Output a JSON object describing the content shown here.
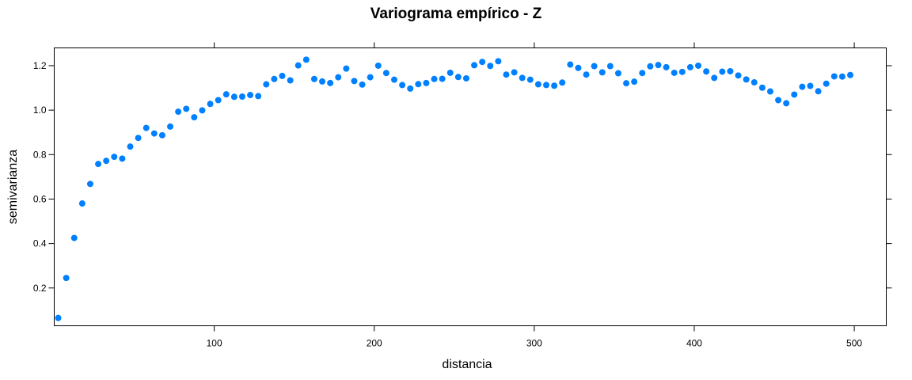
{
  "chart_data": {
    "type": "scatter",
    "title": "Variograma empírico - Z",
    "xlabel": "distancia",
    "ylabel": "semivarianza",
    "xlim": [
      0,
      520
    ],
    "ylim": [
      0.03,
      1.28
    ],
    "xticks": [
      100,
      200,
      300,
      400,
      500
    ],
    "yticks": [
      0.2,
      0.4,
      0.6,
      0.8,
      1.0,
      1.2
    ],
    "xtick_labels": [
      "100",
      "200",
      "300",
      "400",
      "500"
    ],
    "ytick_labels": [
      "0.2",
      "0.4",
      "0.6",
      "0.8",
      "1.0",
      "1.2"
    ],
    "grid": false,
    "marker_color": "#0080ff",
    "x": [
      2.5,
      7.5,
      12.5,
      17.5,
      22.5,
      27.5,
      32.5,
      37.5,
      42.5,
      47.5,
      52.5,
      57.5,
      62.5,
      67.5,
      72.5,
      77.5,
      82.5,
      87.5,
      92.5,
      97.5,
      102.5,
      107.5,
      112.5,
      117.5,
      122.5,
      127.5,
      132.5,
      137.5,
      142.5,
      147.5,
      152.5,
      157.5,
      162.5,
      167.5,
      172.5,
      177.5,
      182.5,
      187.5,
      192.5,
      197.5,
      202.5,
      207.5,
      212.5,
      217.5,
      222.5,
      227.5,
      232.5,
      237.5,
      242.5,
      247.5,
      252.5,
      257.5,
      262.5,
      267.5,
      272.5,
      277.5,
      282.5,
      287.5,
      292.5,
      297.5,
      302.5,
      307.5,
      312.5,
      317.5,
      322.5,
      327.5,
      332.5,
      337.5,
      342.5,
      347.5,
      352.5,
      357.5,
      362.5,
      367.5,
      372.5,
      377.5,
      382.5,
      387.5,
      392.5,
      397.5,
      402.5,
      407.5,
      412.5,
      417.5,
      422.5,
      427.5,
      432.5,
      437.5,
      442.5,
      447.5,
      452.5,
      457.5,
      462.5,
      467.5,
      472.5,
      477.5,
      482.5,
      487.5,
      492.5,
      497.5
    ],
    "y": [
      0.065,
      0.245,
      0.425,
      0.58,
      0.668,
      0.758,
      0.772,
      0.79,
      0.782,
      0.836,
      0.875,
      0.92,
      0.895,
      0.887,
      0.926,
      0.993,
      1.006,
      0.968,
      0.999,
      1.028,
      1.045,
      1.071,
      1.06,
      1.061,
      1.068,
      1.063,
      1.116,
      1.14,
      1.154,
      1.134,
      1.201,
      1.227,
      1.14,
      1.129,
      1.122,
      1.148,
      1.187,
      1.131,
      1.115,
      1.148,
      1.2,
      1.167,
      1.137,
      1.113,
      1.097,
      1.117,
      1.122,
      1.14,
      1.141,
      1.168,
      1.149,
      1.143,
      1.202,
      1.217,
      1.199,
      1.22,
      1.16,
      1.17,
      1.145,
      1.137,
      1.116,
      1.113,
      1.11,
      1.124,
      1.205,
      1.19,
      1.16,
      1.198,
      1.17,
      1.198,
      1.166,
      1.121,
      1.128,
      1.167,
      1.197,
      1.203,
      1.193,
      1.168,
      1.172,
      1.193,
      1.2,
      1.174,
      1.145,
      1.173,
      1.175,
      1.156,
      1.138,
      1.125,
      1.101,
      1.084,
      1.045,
      1.031,
      1.07,
      1.105,
      1.109,
      1.085,
      1.119,
      1.152,
      1.151,
      1.158
    ]
  }
}
